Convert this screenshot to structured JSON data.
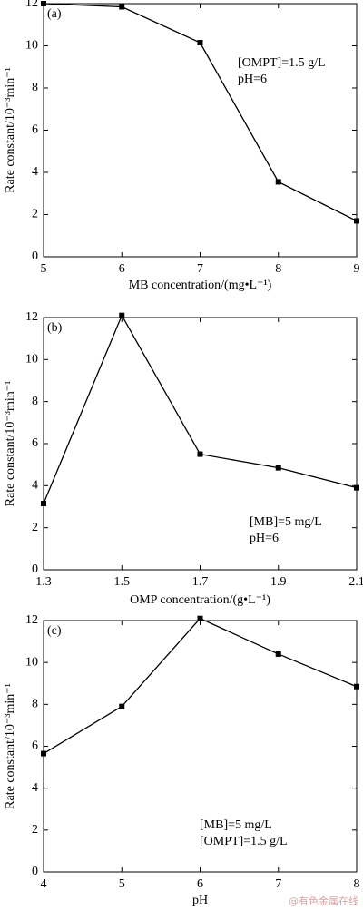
{
  "chart_data": [
    {
      "type": "line",
      "panel_label": "(a)",
      "x_label": "MB concentration/(mg•L⁻¹)",
      "y_label": "Rate constant/10⁻³min⁻¹",
      "annotations": [
        "[OMPT]=1.5 g/L",
        "pH=6"
      ],
      "x": [
        5,
        6,
        7,
        8,
        9
      ],
      "series": [
        {
          "color": "#000000",
          "values": [
            12.0,
            11.85,
            10.15,
            3.55,
            1.7
          ]
        }
      ],
      "xlim": [
        5,
        9
      ],
      "xticks": [
        5,
        6,
        7,
        8,
        9
      ],
      "ylim": [
        0,
        12
      ],
      "yticks": [
        0,
        2,
        4,
        6,
        8,
        10,
        12
      ]
    },
    {
      "type": "line",
      "panel_label": "(b)",
      "x_label": "OMP concentration/(g•L⁻¹)",
      "y_label": "Rate constant/10⁻³min⁻¹",
      "annotations": [
        "[MB]=5 mg/L",
        "pH=6"
      ],
      "x": [
        1.3,
        1.5,
        1.7,
        1.9,
        2.1
      ],
      "series": [
        {
          "color": "#000000",
          "values": [
            3.15,
            12.1,
            5.5,
            4.85,
            3.9
          ]
        }
      ],
      "xlim": [
        1.3,
        2.1
      ],
      "xticks": [
        1.3,
        1.5,
        1.7,
        1.9,
        2.1
      ],
      "ylim": [
        0,
        12
      ],
      "yticks": [
        0,
        2,
        4,
        6,
        8,
        10,
        12
      ]
    },
    {
      "type": "line",
      "panel_label": "(c)",
      "x_label": "pH",
      "y_label": "Rate constant/10⁻³min⁻¹",
      "annotations": [
        "[MB]=5 mg/L",
        "[OMPT]=1.5 g/L"
      ],
      "x": [
        4,
        5,
        6,
        7,
        8
      ],
      "series": [
        {
          "color": "#000000",
          "values": [
            5.65,
            7.9,
            12.1,
            10.4,
            8.85
          ]
        }
      ],
      "xlim": [
        4,
        8
      ],
      "xticks": [
        4,
        5,
        6,
        7,
        8
      ],
      "ylim": [
        0,
        12
      ],
      "yticks": [
        0,
        2,
        4,
        6,
        8,
        10,
        12
      ]
    }
  ],
  "watermark": "@有色金属在线"
}
